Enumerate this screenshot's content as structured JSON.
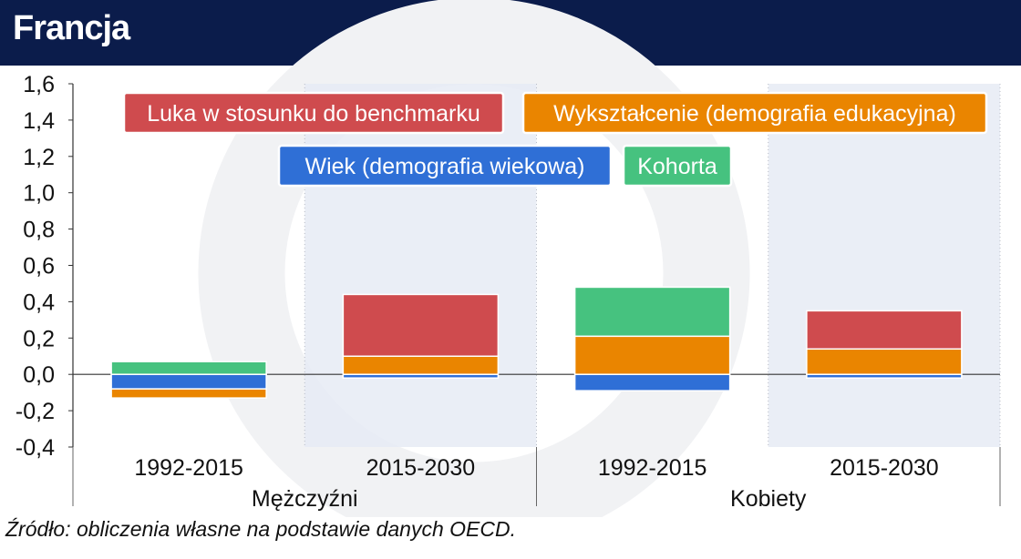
{
  "header": {
    "title": "Francja"
  },
  "source": "Źródło: obliczenia własne na podstawie danych OECD.",
  "colors": {
    "header_bg": "#0b1c4b",
    "luka": "#cf4b4e",
    "wyksztalcenie": "#ea8500",
    "wiek": "#2f6fd6",
    "kohorta": "#46c27f",
    "shade": "#e6ebf5"
  },
  "chart_data": {
    "type": "bar",
    "stacked": true,
    "ylim": [
      -0.4,
      1.6
    ],
    "yticks": [
      "1,6",
      "1,4",
      "1,2",
      "1,0",
      "0,8",
      "0,6",
      "0,4",
      "0,2",
      "0,0",
      "-0,2",
      "-0,4"
    ],
    "ytick_values": [
      1.6,
      1.4,
      1.2,
      1.0,
      0.8,
      0.6,
      0.4,
      0.2,
      0.0,
      -0.2,
      -0.4
    ],
    "categories": [
      "1992-2015",
      "2015-2030",
      "1992-2015",
      "2015-2030"
    ],
    "groups": [
      {
        "label": "Mężczyźni",
        "categories": [
          0,
          1
        ]
      },
      {
        "label": "Kobiety",
        "categories": [
          2,
          3
        ]
      }
    ],
    "series": [
      {
        "name": "Wiek (demografia wiekowa)",
        "color": "#2f6fd6",
        "values": [
          -0.08,
          -0.02,
          -0.09,
          -0.02
        ]
      },
      {
        "name": "Wykształcenie (demografia edukacyjna)",
        "color": "#ea8500",
        "values": [
          -0.05,
          0.1,
          0.21,
          0.14
        ]
      },
      {
        "name": "Kohorta",
        "color": "#46c27f",
        "values": [
          0.07,
          0.0,
          0.27,
          0.0
        ]
      },
      {
        "name": "Luka w stosunku do benchmarku",
        "color": "#cf4b4e",
        "values": [
          0.0,
          0.34,
          0.0,
          0.21
        ]
      }
    ],
    "legend_placement": "top"
  }
}
